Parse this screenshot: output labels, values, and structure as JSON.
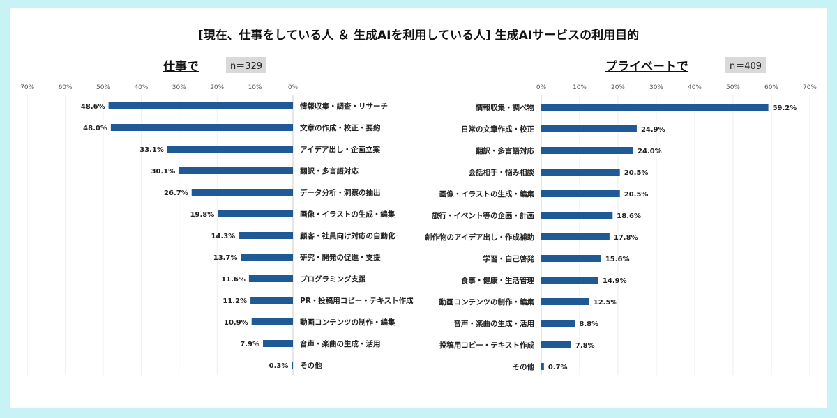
{
  "title": "[現在、仕事をしている人 ＆ 生成AIを利用している人] 生成AIサービスの利用目的",
  "chart_data": [
    {
      "type": "bar",
      "orientation": "horizontal-reversed",
      "title": "仕事で",
      "n_label": "n＝329",
      "xlim": [
        0,
        70
      ],
      "ticks": [
        "0%",
        "10%",
        "20%",
        "30%",
        "40%",
        "50%",
        "60%",
        "70%"
      ],
      "grid": true,
      "color": "#1f5a96",
      "categories": [
        "情報収集・調査・リサーチ",
        "文章の作成・校正・要約",
        "アイデア出し・企画立案",
        "翻訳・多言語対応",
        "データ分析・洞察の抽出",
        "画像・イラストの生成・編集",
        "顧客・社員向け対応の自動化",
        "研究・開発の促進・支援",
        "プログラミング支援",
        "PR・投稿用コピー・テキスト作成",
        "動画コンテンツの制作・編集",
        "音声・楽曲の生成・活用",
        "その他"
      ],
      "values": [
        48.6,
        48.0,
        33.1,
        30.1,
        26.7,
        19.8,
        14.3,
        13.7,
        11.6,
        11.2,
        10.9,
        7.9,
        0.3
      ],
      "labels": [
        "48.6%",
        "48.0%",
        "33.1%",
        "30.1%",
        "26.7%",
        "19.8%",
        "14.3%",
        "13.7%",
        "11.6%",
        "11.2%",
        "10.9%",
        "7.9%",
        "0.3%"
      ]
    },
    {
      "type": "bar",
      "orientation": "horizontal",
      "title": "プライベートで",
      "n_label": "n＝409",
      "xlim": [
        0,
        70
      ],
      "ticks": [
        "0%",
        "10%",
        "20%",
        "30%",
        "40%",
        "50%",
        "60%",
        "70%"
      ],
      "grid": true,
      "color": "#1f5a96",
      "categories": [
        "情報収集・調べ物",
        "日常の文章作成・校正",
        "翻訳・多言語対応",
        "会話相手・悩み相談",
        "画像・イラストの生成・編集",
        "旅行・イベント等の企画・計画",
        "創作物のアイデア出し・作成補助",
        "学習・自己啓発",
        "食事・健康・生活管理",
        "動画コンテンツの制作・編集",
        "音声・楽曲の生成・活用",
        "投稿用コピー・テキスト作成",
        "その他"
      ],
      "values": [
        59.2,
        24.9,
        24.0,
        20.5,
        20.5,
        18.6,
        17.8,
        15.6,
        14.9,
        12.5,
        8.8,
        7.8,
        0.7
      ],
      "labels": [
        "59.2%",
        "24.9%",
        "24.0%",
        "20.5%",
        "20.5%",
        "18.6%",
        "17.8%",
        "15.6%",
        "14.9%",
        "12.5%",
        "8.8%",
        "7.8%",
        "0.7%"
      ]
    }
  ]
}
